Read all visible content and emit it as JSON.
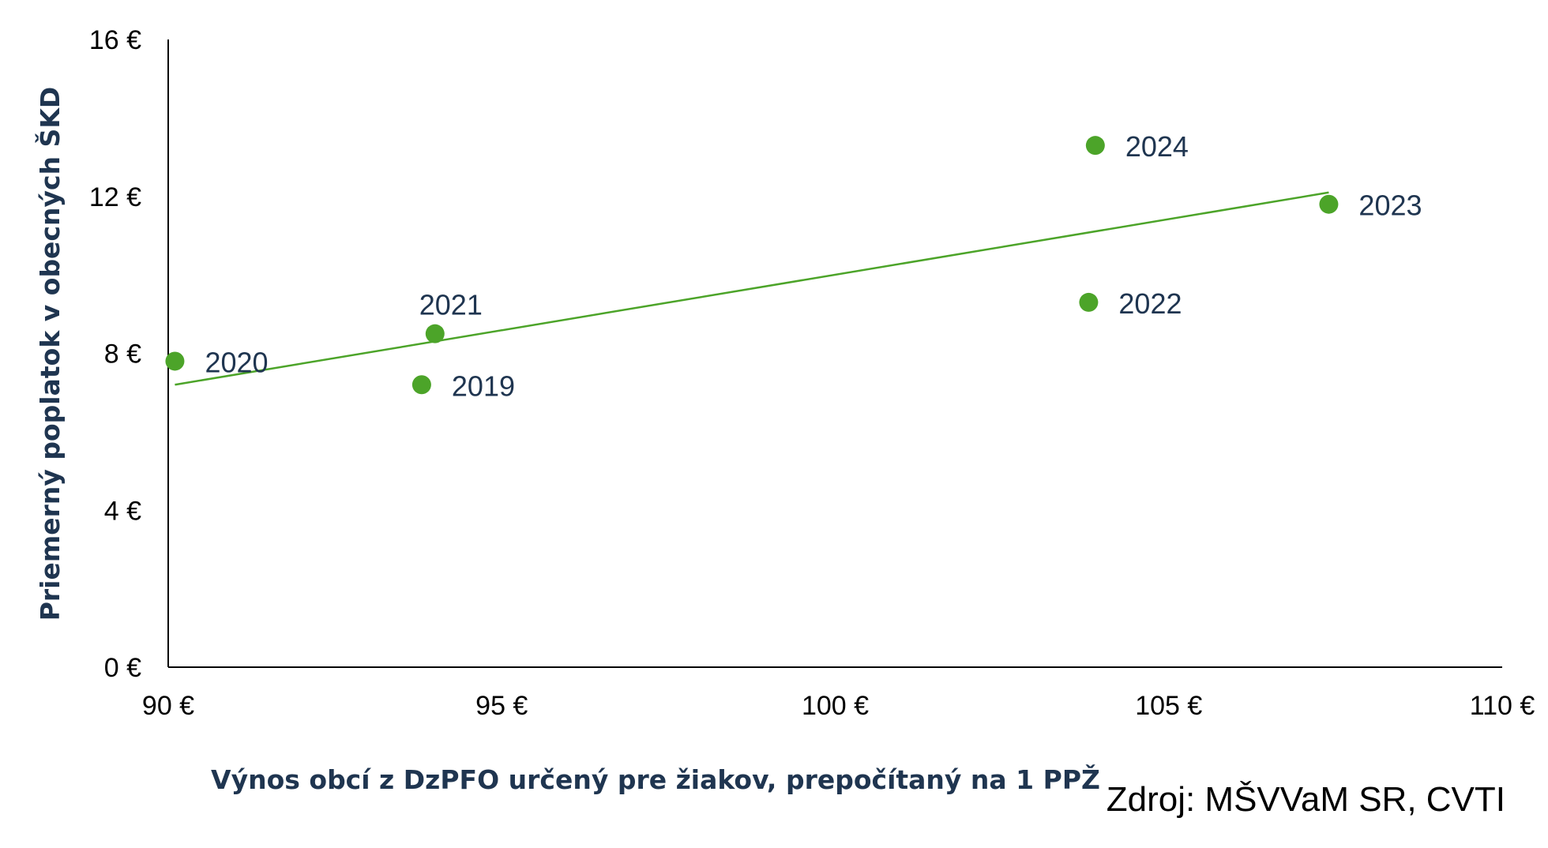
{
  "chart_data": {
    "type": "scatter",
    "title": "",
    "xlabel": "Výnos obcí z DzPFO určený pre žiakov, prepočítaný na 1 PPŽ",
    "ylabel": "Priemerný poplatok v obecných ŠKD",
    "xlim": [
      90,
      110
    ],
    "ylim": [
      0,
      16
    ],
    "x_ticks": [
      90,
      95,
      100,
      105,
      110
    ],
    "y_ticks": [
      0,
      4,
      8,
      12,
      16
    ],
    "x_tick_labels": [
      "90 €",
      "95 €",
      "100 €",
      "105 €",
      "110 €"
    ],
    "y_tick_labels": [
      "0 €",
      "4 €",
      "8 €",
      "12 €",
      "16 €"
    ],
    "grid": false,
    "points": [
      {
        "label": "2019",
        "x": 93.8,
        "y": 7.2
      },
      {
        "label": "2020",
        "x": 90.1,
        "y": 7.8
      },
      {
        "label": "2021",
        "x": 94.0,
        "y": 8.5
      },
      {
        "label": "2022",
        "x": 103.8,
        "y": 9.3
      },
      {
        "label": "2023",
        "x": 107.4,
        "y": 11.8
      },
      {
        "label": "2024",
        "x": 103.9,
        "y": 13.3
      }
    ],
    "trendline": {
      "x": [
        90.1,
        107.4
      ],
      "y": [
        7.2,
        12.1
      ]
    },
    "point_color": "#4ca429",
    "trend_color": "#4ca429"
  },
  "source_note": "Zdroj: MŠVVaM SR, CVTI"
}
